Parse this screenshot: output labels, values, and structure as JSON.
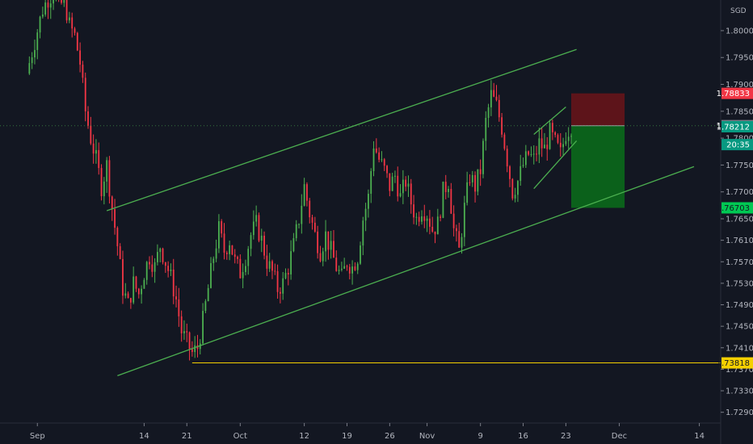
{
  "chart_data": {
    "type": "candlestick",
    "currency": "SGD",
    "ylim": [
      1.727,
      1.8057
    ],
    "y_ticks": [
      "1.80000",
      "1.79500",
      "1.79000",
      "1.78500",
      "1.78000",
      "1.77500",
      "1.77000",
      "1.76500",
      "1.76100",
      "1.75700",
      "1.75300",
      "1.74900",
      "1.74500",
      "1.74100",
      "1.73700",
      "1.73300",
      "1.72900"
    ],
    "y_tick_values": [
      1.8,
      1.795,
      1.79,
      1.785,
      1.78,
      1.775,
      1.77,
      1.765,
      1.761,
      1.757,
      1.753,
      1.749,
      1.745,
      1.741,
      1.737,
      1.733,
      1.729
    ],
    "x_ticks": [
      {
        "label": "Sep",
        "bar": 2
      },
      {
        "label": "14",
        "bar": 22
      },
      {
        "label": "21",
        "bar": 30
      },
      {
        "label": "Oct",
        "bar": 40
      },
      {
        "label": "12",
        "bar": 52
      },
      {
        "label": "19",
        "bar": 60
      },
      {
        "label": "26",
        "bar": 68
      },
      {
        "label": "Nov",
        "bar": 75
      },
      {
        "label": "9",
        "bar": 85
      },
      {
        "label": "16",
        "bar": 93
      },
      {
        "label": "23",
        "bar": 101
      },
      {
        "label": "Dec",
        "bar": 111
      },
      {
        "label": "14",
        "bar": 126
      }
    ],
    "x_range_bars": [
      -5,
      130
    ],
    "price_series": [
      [
        0,
        1.792
      ],
      [
        2,
        1.8
      ],
      [
        3,
        1.804
      ],
      [
        4,
        1.806
      ],
      [
        5,
        1.807
      ],
      [
        6,
        1.804
      ],
      [
        7,
        1.806
      ],
      [
        8,
        1.801
      ],
      [
        9,
        1.799
      ],
      [
        10,
        1.794
      ],
      [
        11,
        1.785
      ],
      [
        12,
        1.78
      ],
      [
        13,
        1.776
      ],
      [
        14,
        1.771
      ],
      [
        15,
        1.775
      ],
      [
        16,
        1.767
      ],
      [
        17,
        1.76
      ],
      [
        18,
        1.752
      ],
      [
        19,
        1.749
      ],
      [
        20,
        1.753
      ],
      [
        21,
        1.751
      ],
      [
        22,
        1.755
      ],
      [
        23,
        1.758
      ],
      [
        24,
        1.756
      ],
      [
        25,
        1.76
      ],
      [
        26,
        1.757
      ],
      [
        27,
        1.754
      ],
      [
        28,
        1.75
      ],
      [
        29,
        1.744
      ],
      [
        30,
        1.742
      ],
      [
        31,
        1.74
      ],
      [
        32,
        1.741
      ],
      [
        33,
        1.746
      ],
      [
        34,
        1.752
      ],
      [
        35,
        1.758
      ],
      [
        36,
        1.763
      ],
      [
        37,
        1.759
      ],
      [
        38,
        1.761
      ],
      [
        39,
        1.757
      ],
      [
        40,
        1.755
      ],
      [
        41,
        1.758
      ],
      [
        42,
        1.762
      ],
      [
        43,
        1.764
      ],
      [
        44,
        1.761
      ],
      [
        45,
        1.757
      ],
      [
        46,
        1.755
      ],
      [
        47,
        1.752
      ],
      [
        48,
        1.753
      ],
      [
        49,
        1.756
      ],
      [
        50,
        1.76
      ],
      [
        51,
        1.765
      ],
      [
        52,
        1.771
      ],
      [
        53,
        1.766
      ],
      [
        54,
        1.762
      ],
      [
        55,
        1.759
      ],
      [
        56,
        1.762
      ],
      [
        57,
        1.759
      ],
      [
        58,
        1.756
      ],
      [
        59,
        1.754
      ],
      [
        60,
        1.757
      ],
      [
        61,
        1.756
      ],
      [
        62,
        1.758
      ],
      [
        63,
        1.765
      ],
      [
        64,
        1.769
      ],
      [
        65,
        1.779
      ],
      [
        66,
        1.776
      ],
      [
        67,
        1.774
      ],
      [
        68,
        1.771
      ],
      [
        69,
        1.773
      ],
      [
        70,
        1.769
      ],
      [
        71,
        1.772
      ],
      [
        72,
        1.768
      ],
      [
        73,
        1.765
      ],
      [
        74,
        1.767
      ],
      [
        75,
        1.766
      ],
      [
        76,
        1.763
      ],
      [
        77,
        1.764
      ],
      [
        78,
        1.77
      ],
      [
        79,
        1.772
      ],
      [
        80,
        1.763
      ],
      [
        81,
        1.759
      ],
      [
        82,
        1.767
      ],
      [
        83,
        1.773
      ],
      [
        84,
        1.771
      ],
      [
        85,
        1.774
      ],
      [
        86,
        1.783
      ],
      [
        87,
        1.788
      ],
      [
        88,
        1.786
      ],
      [
        89,
        1.782
      ],
      [
        90,
        1.776
      ],
      [
        91,
        1.77
      ],
      [
        92,
        1.772
      ],
      [
        93,
        1.775
      ],
      [
        94,
        1.777
      ],
      [
        95,
        1.776
      ],
      [
        96,
        1.779
      ],
      [
        97,
        1.778
      ],
      [
        98,
        1.781
      ],
      [
        99,
        1.779
      ],
      [
        100,
        1.777
      ],
      [
        101,
        1.781
      ],
      [
        102,
        1.7823
      ]
    ],
    "price_tags": [
      {
        "label": "1.78833",
        "value": 1.78833,
        "color": "#f23645"
      },
      {
        "label": "1.78233",
        "value": 1.78233,
        "color": "#787b86"
      },
      {
        "label": "1.78212",
        "value": 1.78212,
        "color": "#089981"
      },
      {
        "label": "20:35",
        "value": 1.7788,
        "color": "#089981"
      },
      {
        "label": "1.76703",
        "value": 1.76703,
        "color": "#00c853"
      },
      {
        "label": "1.73818",
        "value": 1.73818,
        "color": "#f5d000"
      }
    ],
    "annotations": {
      "channel_upper": [
        [
          15,
          1.7665
        ],
        [
          103,
          1.7965
        ]
      ],
      "channel_lower": [
        [
          17,
          1.7358
        ],
        [
          125,
          1.7747
        ]
      ],
      "wedge_upper": [
        [
          95,
          1.7807
        ],
        [
          101,
          1.7858
        ]
      ],
      "wedge_lower": [
        [
          95,
          1.7706
        ],
        [
          103,
          1.7795
        ]
      ],
      "support_level": {
        "value": 1.73818,
        "from_bar": 31
      },
      "short_position": {
        "from_bar": 102,
        "to_bar": 112,
        "entry": 1.7823,
        "stop": 1.78833,
        "target": 1.76703
      }
    },
    "colors": {
      "background": "#131722",
      "up": "#4caf50",
      "down": "#f23645",
      "trendline": "#4caf50",
      "support": "#f5d000",
      "loss_zone": "#6b1419",
      "profit_zone": "#0b6e1a"
    }
  }
}
